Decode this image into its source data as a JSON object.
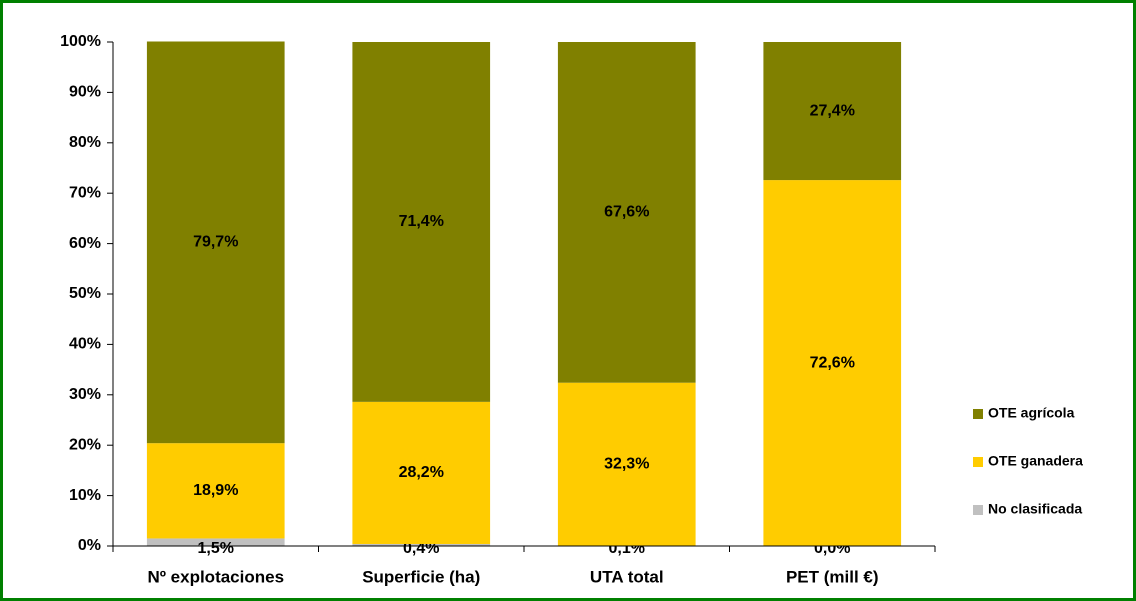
{
  "chart_data": {
    "type": "stacked_bar",
    "categories": [
      "Nº explotaciones",
      "Superficie (ha)",
      "UTA total",
      "PET (mill €)"
    ],
    "series": [
      {
        "name": "No clasificada",
        "color": "#c0c0c0",
        "values": [
          1.5,
          0.4,
          0.1,
          0.0
        ],
        "value_labels": [
          "1,5%",
          "0,4%",
          "0,1%",
          "0,0%"
        ]
      },
      {
        "name": "OTE ganadera",
        "color": "#ffcc00",
        "values": [
          18.9,
          28.2,
          32.3,
          72.6
        ],
        "value_labels": [
          "18,9%",
          "28,2%",
          "32,3%",
          "72,6%"
        ]
      },
      {
        "name": "OTE agrícola",
        "color": "#808000",
        "values": [
          79.7,
          71.4,
          67.6,
          27.4
        ],
        "value_labels": [
          "79,7%",
          "71,4%",
          "67,6%",
          "27,4%"
        ]
      }
    ],
    "ylim": [
      0,
      100
    ],
    "yticks": [
      {
        "value": 0,
        "label": "0%"
      },
      {
        "value": 10,
        "label": "10%"
      },
      {
        "value": 20,
        "label": "20%"
      },
      {
        "value": 30,
        "label": "30%"
      },
      {
        "value": 40,
        "label": "40%"
      },
      {
        "value": 50,
        "label": "50%"
      },
      {
        "value": 60,
        "label": "60%"
      },
      {
        "value": 70,
        "label": "70%"
      },
      {
        "value": 80,
        "label": "80%"
      },
      {
        "value": 90,
        "label": "90%"
      },
      {
        "value": 100,
        "label": "100%"
      }
    ],
    "grid": false,
    "legend": "right"
  }
}
